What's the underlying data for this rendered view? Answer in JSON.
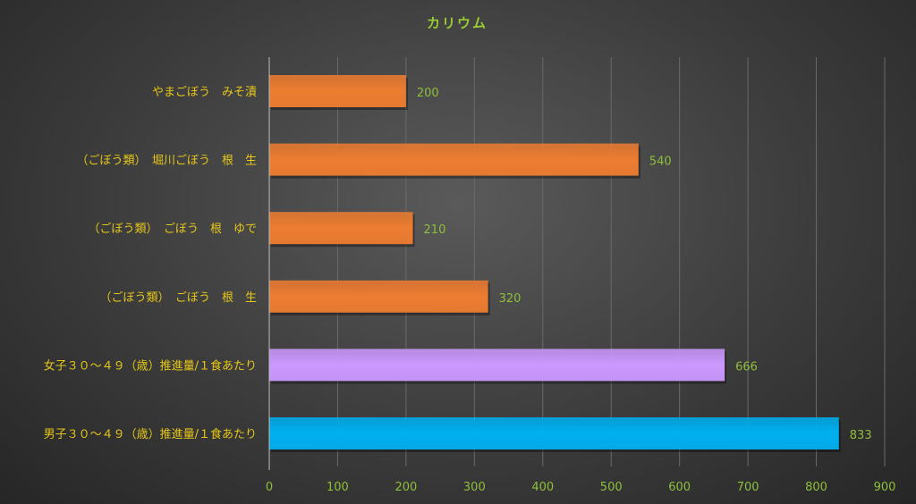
{
  "chart_data": {
    "type": "bar",
    "orientation": "horizontal",
    "title": "カリウム",
    "categories": [
      "やまごぼう　みそ漬",
      "（ごぼう類）　堀川ごぼう　根　生",
      "（ごぼう類）　ごぼう　根　ゆで",
      "（ごぼう類）　ごぼう　根　生",
      "女子３０～４９（歳）推進量/１食あたり",
      "男子３０～４９（歳）推進量/１食あたり"
    ],
    "values": [
      200,
      540,
      210,
      320,
      666,
      833
    ],
    "value_labels": [
      "200",
      "540",
      "210",
      "320",
      "666",
      "833"
    ],
    "bar_colors": [
      "#ed7d31",
      "#ed7d31",
      "#ed7d31",
      "#ed7d31",
      "#cc99ff",
      "#00b0f0"
    ],
    "xlim": [
      0,
      900
    ],
    "x_ticks": [
      0,
      100,
      200,
      300,
      400,
      500,
      600,
      700,
      800,
      900
    ],
    "x_tick_labels": [
      "0",
      "100",
      "200",
      "300",
      "400",
      "500",
      "600",
      "700",
      "800",
      "900"
    ],
    "grid": true,
    "legend": "none"
  }
}
